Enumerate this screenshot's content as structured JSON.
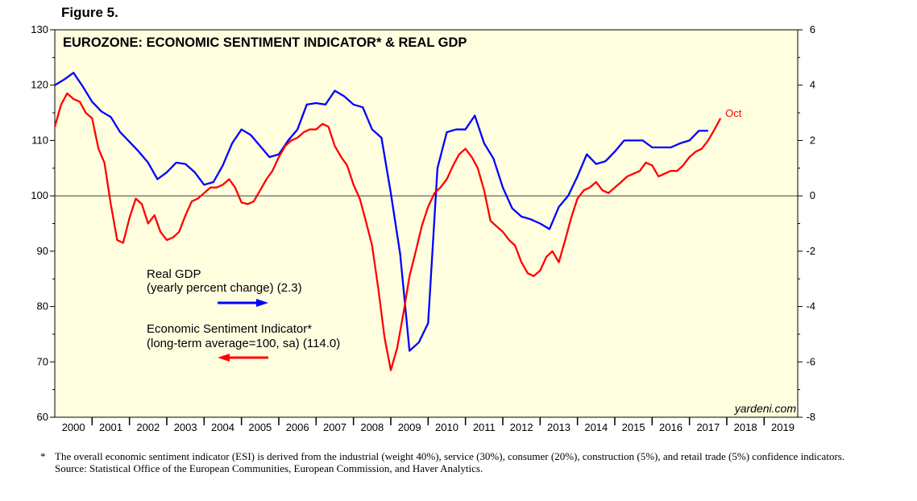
{
  "figure_label": "Figure 5.",
  "chart_data": {
    "type": "line",
    "title": "EUROZONE: ECONOMIC SENTIMENT INDICATOR* & REAL GDP",
    "x_range": [
      2000,
      2019.9
    ],
    "x_tick_labels": [
      "2000",
      "2001",
      "2002",
      "2003",
      "2004",
      "2005",
      "2006",
      "2007",
      "2008",
      "2009",
      "2010",
      "2011",
      "2012",
      "2013",
      "2014",
      "2015",
      "2016",
      "2017",
      "2018",
      "2019"
    ],
    "y_left": {
      "range": [
        60,
        130
      ],
      "ticks": [
        "60",
        "70",
        "80",
        "90",
        "100",
        "110",
        "120",
        "130"
      ]
    },
    "y_right": {
      "range": [
        -8,
        6
      ],
      "ticks": [
        "-8",
        "-6",
        "-4",
        "-2",
        "0",
        "2",
        "4",
        "6"
      ]
    },
    "reference_line": 100,
    "series": [
      {
        "name": "Real GDP",
        "legend_sub": "(yearly percent change) (2.3)",
        "axis": "right",
        "color": "#0000ff",
        "x": [
          2000.0,
          2000.25,
          2000.5,
          2000.75,
          2001.0,
          2001.25,
          2001.5,
          2001.75,
          2002.0,
          2002.25,
          2002.5,
          2002.75,
          2003.0,
          2003.25,
          2003.5,
          2003.75,
          2004.0,
          2004.25,
          2004.5,
          2004.75,
          2005.0,
          2005.25,
          2005.5,
          2005.75,
          2006.0,
          2006.25,
          2006.5,
          2006.75,
          2007.0,
          2007.25,
          2007.5,
          2007.75,
          2008.0,
          2008.25,
          2008.5,
          2008.75,
          2009.0,
          2009.25,
          2009.5,
          2009.75,
          2010.0,
          2010.25,
          2010.5,
          2010.75,
          2011.0,
          2011.25,
          2011.5,
          2011.75,
          2012.0,
          2012.25,
          2012.5,
          2012.75,
          2013.0,
          2013.25,
          2013.5,
          2013.75,
          2014.0,
          2014.25,
          2014.5,
          2014.75,
          2015.0,
          2015.25,
          2015.5,
          2015.75,
          2016.0,
          2016.25,
          2016.5,
          2016.75,
          2017.0,
          2017.25,
          2017.5
        ],
        "values": [
          4.0,
          4.2,
          4.45,
          3.95,
          3.4,
          3.05,
          2.85,
          2.3,
          1.95,
          1.6,
          1.2,
          0.6,
          0.85,
          1.2,
          1.15,
          0.85,
          0.4,
          0.5,
          1.1,
          1.9,
          2.4,
          2.2,
          1.8,
          1.4,
          1.5,
          2.0,
          2.4,
          3.3,
          3.35,
          3.3,
          3.8,
          3.6,
          3.3,
          3.2,
          2.4,
          2.1,
          0.1,
          -2.1,
          -5.6,
          -5.3,
          -4.6,
          1.0,
          2.3,
          2.4,
          2.4,
          2.9,
          1.9,
          1.35,
          0.3,
          -0.45,
          -0.75,
          -0.85,
          -1.0,
          -1.2,
          -0.4,
          0.0,
          0.7,
          1.5,
          1.15,
          1.25,
          1.6,
          2.0,
          2.0,
          2.0,
          1.75,
          1.75,
          1.75,
          1.9,
          2.0,
          2.35,
          2.35
        ]
      },
      {
        "name": "Economic Sentiment Indicator*",
        "legend_sub": "(long-term average=100, sa) (114.0)",
        "axis": "left",
        "color": "#ff0000",
        "end_label": "Oct",
        "x": [
          2000.0,
          2000.17,
          2000.33,
          2000.5,
          2000.67,
          2000.83,
          2001.0,
          2001.17,
          2001.33,
          2001.5,
          2001.67,
          2001.83,
          2002.0,
          2002.17,
          2002.33,
          2002.5,
          2002.67,
          2002.83,
          2003.0,
          2003.17,
          2003.33,
          2003.5,
          2003.67,
          2003.83,
          2004.0,
          2004.17,
          2004.33,
          2004.5,
          2004.67,
          2004.83,
          2005.0,
          2005.17,
          2005.33,
          2005.5,
          2005.67,
          2005.83,
          2006.0,
          2006.17,
          2006.33,
          2006.5,
          2006.67,
          2006.83,
          2007.0,
          2007.17,
          2007.33,
          2007.5,
          2007.67,
          2007.83,
          2008.0,
          2008.17,
          2008.33,
          2008.5,
          2008.67,
          2008.83,
          2009.0,
          2009.17,
          2009.33,
          2009.5,
          2009.67,
          2009.83,
          2010.0,
          2010.17,
          2010.33,
          2010.5,
          2010.67,
          2010.83,
          2011.0,
          2011.17,
          2011.33,
          2011.5,
          2011.67,
          2011.83,
          2012.0,
          2012.17,
          2012.33,
          2012.5,
          2012.67,
          2012.83,
          2013.0,
          2013.17,
          2013.33,
          2013.5,
          2013.67,
          2013.83,
          2014.0,
          2014.17,
          2014.33,
          2014.5,
          2014.67,
          2014.83,
          2015.0,
          2015.17,
          2015.33,
          2015.5,
          2015.67,
          2015.83,
          2016.0,
          2016.17,
          2016.33,
          2016.5,
          2016.67,
          2016.83,
          2017.0,
          2017.17,
          2017.33,
          2017.5,
          2017.67,
          2017.83
        ],
        "values": [
          112.5,
          116.5,
          118.5,
          117.5,
          117.0,
          115.0,
          114.0,
          108.5,
          106.0,
          98.5,
          92.0,
          91.5,
          96.0,
          99.5,
          98.5,
          95.0,
          96.5,
          93.5,
          92.0,
          92.5,
          93.5,
          96.5,
          99.0,
          99.5,
          100.5,
          101.5,
          101.5,
          102.0,
          103.0,
          101.5,
          98.8,
          98.5,
          99.0,
          101.0,
          103.0,
          104.5,
          107.0,
          109.0,
          110.0,
          110.5,
          111.5,
          112.0,
          112.0,
          113.0,
          112.5,
          109.0,
          107.0,
          105.5,
          102.0,
          99.5,
          95.5,
          91.0,
          83.0,
          74.5,
          68.5,
          72.5,
          78.5,
          85.5,
          90.0,
          94.5,
          98.0,
          100.5,
          101.5,
          103.0,
          105.5,
          107.5,
          108.5,
          107.0,
          105.0,
          101.0,
          95.5,
          94.5,
          93.5,
          92.0,
          91.0,
          88.0,
          86.0,
          85.5,
          86.5,
          89.0,
          90.0,
          88.0,
          92.0,
          96.0,
          99.5,
          101.0,
          101.5,
          102.5,
          101.0,
          100.5,
          101.5,
          102.5,
          103.5,
          104.0,
          104.5,
          106.0,
          105.5,
          103.5,
          104.0,
          104.5,
          104.5,
          105.5,
          107.0,
          108.0,
          108.5,
          110.0,
          112.0,
          114.0
        ]
      }
    ],
    "watermark": "yardeni.com"
  },
  "footnote": {
    "marker": "*",
    "text": "The overall economic sentiment indicator (ESI) is derived from the industrial (weight 40%), service (30%), consumer (20%), construction (5%), and retail trade (5%) confidence indicators.",
    "source": "Source: Statistical Office of the European Communities, European Commission, and Haver Analytics."
  }
}
